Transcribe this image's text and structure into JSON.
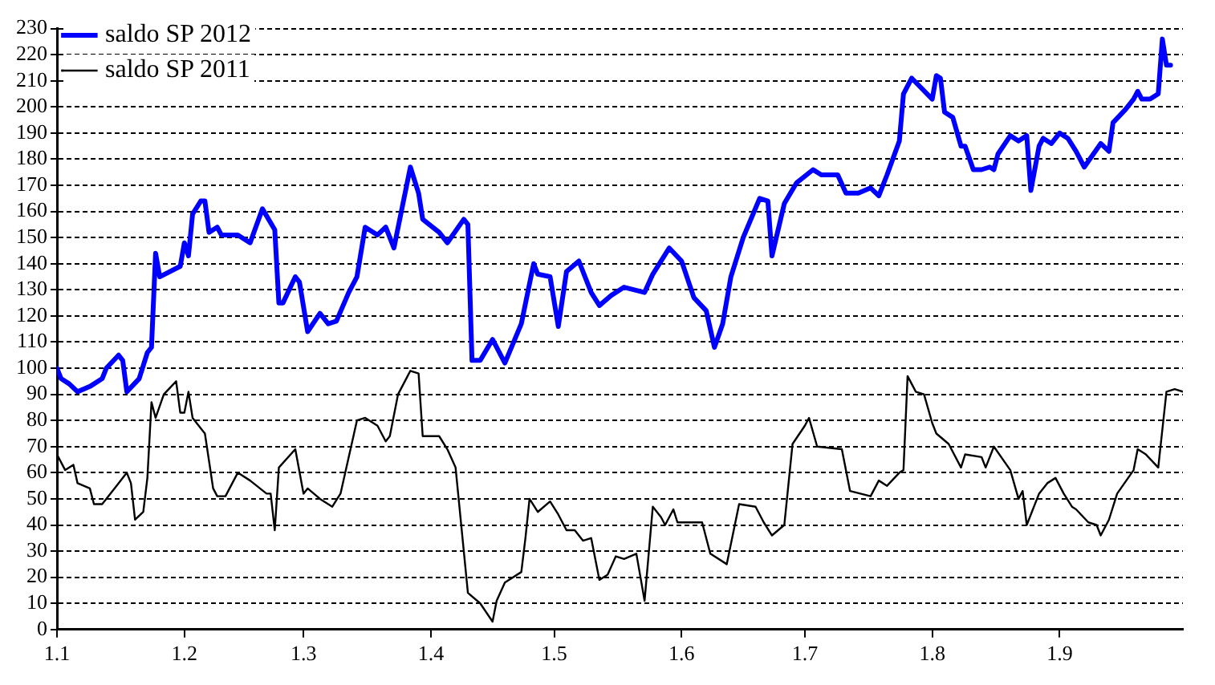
{
  "chart_data": {
    "type": "line",
    "xlim": [
      "--01-01",
      "--10-01"
    ],
    "xticks": [
      {
        "value": "--01-01",
        "label": "1.1"
      },
      {
        "value": "--02-01",
        "label": "1.2"
      },
      {
        "value": "--03-01",
        "label": "1.3"
      },
      {
        "value": "--04-01",
        "label": "1.4"
      },
      {
        "value": "--05-01",
        "label": "1.5"
      },
      {
        "value": "--06-01",
        "label": "1.6"
      },
      {
        "value": "--07-01",
        "label": "1.7"
      },
      {
        "value": "--08-01",
        "label": "1.8"
      },
      {
        "value": "--09-01",
        "label": "1.9"
      }
    ],
    "ylim": [
      0,
      230
    ],
    "yticks": [
      0,
      10,
      20,
      30,
      40,
      50,
      60,
      70,
      80,
      90,
      100,
      110,
      120,
      130,
      140,
      150,
      160,
      170,
      180,
      190,
      200,
      210,
      220,
      230
    ],
    "grid": "y",
    "legend": "top left",
    "marker": "none",
    "line_style": "solid",
    "series": [
      {
        "name": "saldo SP 2012",
        "color": "#0000ff",
        "x": [
          "--01-01",
          "--01-02",
          "--01-04",
          "--01-06",
          "--01-09",
          "--01-12",
          "--01-13",
          "--01-16",
          "--01-17",
          "--01-18",
          "--01-21",
          "--01-23",
          "--01-24",
          "--01-25",
          "--01-26",
          "--01-31",
          "--02-01",
          "--02-02",
          "--02-03",
          "--02-05",
          "--02-06",
          "--02-07",
          "--02-09",
          "--02-10",
          "--02-14",
          "--02-17",
          "--02-20",
          "--02-23",
          "--02-24",
          "--02-25",
          "--02-28",
          "--02-29",
          "--03-02",
          "--03-05",
          "--03-07",
          "--03-09",
          "--03-12",
          "--03-14",
          "--03-16",
          "--03-19",
          "--03-21",
          "--03-23",
          "--03-27",
          "--03-29",
          "--03-30",
          "--04-03",
          "--04-05",
          "--04-09",
          "--04-10",
          "--04-11",
          "--04-13",
          "--04-16",
          "--04-19",
          "--04-23",
          "--04-26",
          "--04-27",
          "--04-30",
          "--05-02",
          "--05-04",
          "--05-07",
          "--05-10",
          "--05-12",
          "--05-15",
          "--05-18",
          "--05-23",
          "--05-25",
          "--05-29",
          "--06-01",
          "--06-04",
          "--06-07",
          "--06-09",
          "--06-11",
          "--06-13",
          "--06-16",
          "--06-20",
          "--06-22",
          "--06-23",
          "--06-26",
          "--06-29",
          "--07-03",
          "--07-05",
          "--07-09",
          "--07-11",
          "--07-14",
          "--07-17",
          "--07-19",
          "--07-21",
          "--07-24",
          "--07-25",
          "--07-27",
          "--08-01",
          "--08-02",
          "--08-03",
          "--08-04",
          "--08-06",
          "--08-08",
          "--08-09",
          "--08-11",
          "--08-13",
          "--08-15",
          "--08-16",
          "--08-17",
          "--08-20",
          "--08-22",
          "--08-24",
          "--08-25",
          "--08-27",
          "--08-28",
          "--08-30",
          "--09-01",
          "--09-03",
          "--09-05",
          "--09-07",
          "--09-11",
          "--09-13",
          "--09-14",
          "--09-17",
          "--09-19",
          "--09-20",
          "--09-21",
          "--09-23",
          "--09-25",
          "--09-26",
          "--09-27",
          "--09-28"
        ],
        "values": [
          100,
          96,
          94,
          91,
          93,
          96,
          100,
          105,
          103,
          91,
          96,
          106,
          108,
          144,
          135,
          139,
          148,
          143,
          159,
          164,
          164,
          152,
          154,
          151,
          151,
          148,
          161,
          153,
          125,
          125,
          135,
          133,
          114,
          121,
          117,
          118,
          129,
          135,
          154,
          151,
          154,
          146,
          177,
          167,
          157,
          152,
          148,
          157,
          155,
          103,
          103,
          111,
          102,
          117,
          140,
          136,
          135,
          116,
          137,
          141,
          129,
          124,
          128,
          131,
          129,
          136,
          146,
          141,
          127,
          122,
          108,
          117,
          135,
          150,
          165,
          164,
          143,
          163,
          171,
          176,
          174,
          174,
          167,
          167,
          169,
          166,
          174,
          187,
          205,
          211,
          203,
          212,
          211,
          198,
          196,
          185,
          185,
          176,
          176,
          177,
          176,
          182,
          189,
          187,
          189,
          168,
          185,
          188,
          186,
          190,
          188,
          183,
          177,
          186,
          183,
          194,
          199,
          203,
          206,
          203,
          203,
          205,
          226,
          216,
          216
        ]
      },
      {
        "name": "saldo SP 2011",
        "color": "#000000",
        "x": [
          "--01-01",
          "--01-03",
          "--01-05",
          "--01-06",
          "--01-09",
          "--01-10",
          "--01-12",
          "--01-15",
          "--01-18",
          "--01-19",
          "--01-20",
          "--01-22",
          "--01-23",
          "--01-24",
          "--01-25",
          "--01-27",
          "--01-30",
          "--01-31",
          "--02-01",
          "--02-02",
          "--02-03",
          "--02-06",
          "--02-08",
          "--02-09",
          "--02-11",
          "--02-14",
          "--02-17",
          "--02-21",
          "--02-22",
          "--02-23",
          "--02-24",
          "--02-28",
          "--03-01",
          "--03-02",
          "--03-05",
          "--03-08",
          "--03-10",
          "--03-14",
          "--03-16",
          "--03-19",
          "--03-21",
          "--03-22",
          "--03-24",
          "--03-27",
          "--03-29",
          "--03-30",
          "--04-03",
          "--04-05",
          "--04-07",
          "--04-10",
          "--04-13",
          "--04-16",
          "--04-17",
          "--04-19",
          "--04-23",
          "--04-24",
          "--04-25",
          "--04-27",
          "--04-30",
          "--05-02",
          "--05-04",
          "--05-06",
          "--05-08",
          "--05-10",
          "--05-12",
          "--05-14",
          "--05-16",
          "--05-18",
          "--05-21",
          "--05-23",
          "--05-25",
          "--05-27",
          "--05-28",
          "--05-30",
          "--05-31",
          "--06-03",
          "--06-06",
          "--06-08",
          "--06-12",
          "--06-15",
          "--06-19",
          "--06-21",
          "--06-23",
          "--06-26",
          "--06-28",
          "--07-01",
          "--07-02",
          "--07-04",
          "--07-10",
          "--07-12",
          "--07-17",
          "--07-19",
          "--07-21",
          "--07-24",
          "--07-25",
          "--07-26",
          "--07-28",
          "--07-30",
          "--08-01",
          "--08-02",
          "--08-05",
          "--08-08",
          "--08-09",
          "--08-13",
          "--08-14",
          "--08-16",
          "--08-20",
          "--08-22",
          "--08-23",
          "--08-24",
          "--08-27",
          "--08-29",
          "--08-31",
          "--09-02",
          "--09-04",
          "--09-05",
          "--09-08",
          "--09-10",
          "--09-11",
          "--09-13",
          "--09-15",
          "--09-19",
          "--09-20",
          "--09-22",
          "--09-25",
          "--09-27",
          "--09-29",
          "--10-01"
        ],
        "values": [
          67,
          61,
          63,
          56,
          54,
          48,
          48,
          54,
          60,
          56,
          42,
          45,
          58,
          87,
          81,
          90,
          95,
          83,
          83,
          91,
          81,
          75,
          54,
          51,
          51,
          60,
          57,
          52,
          52,
          38,
          62,
          69,
          52,
          54,
          50,
          47,
          52,
          80,
          81,
          78,
          72,
          74,
          90,
          99,
          98,
          74,
          74,
          69,
          62,
          14,
          10,
          3,
          11,
          18,
          22,
          35,
          50,
          45,
          49,
          44,
          38,
          38,
          34,
          35,
          19,
          21,
          28,
          27,
          29,
          11,
          47,
          43,
          40,
          46,
          41,
          41,
          41,
          29,
          25,
          48,
          47,
          41,
          36,
          40,
          71,
          78,
          81,
          70,
          69,
          53,
          51,
          57,
          55,
          60,
          61,
          97,
          91,
          90,
          79,
          75,
          71,
          62,
          67,
          66,
          62,
          70,
          61,
          50,
          53,
          40,
          52,
          56,
          58,
          52,
          47,
          46,
          41,
          40,
          36,
          42,
          52,
          61,
          69,
          67,
          62,
          91,
          92,
          91
        ]
      }
    ]
  }
}
